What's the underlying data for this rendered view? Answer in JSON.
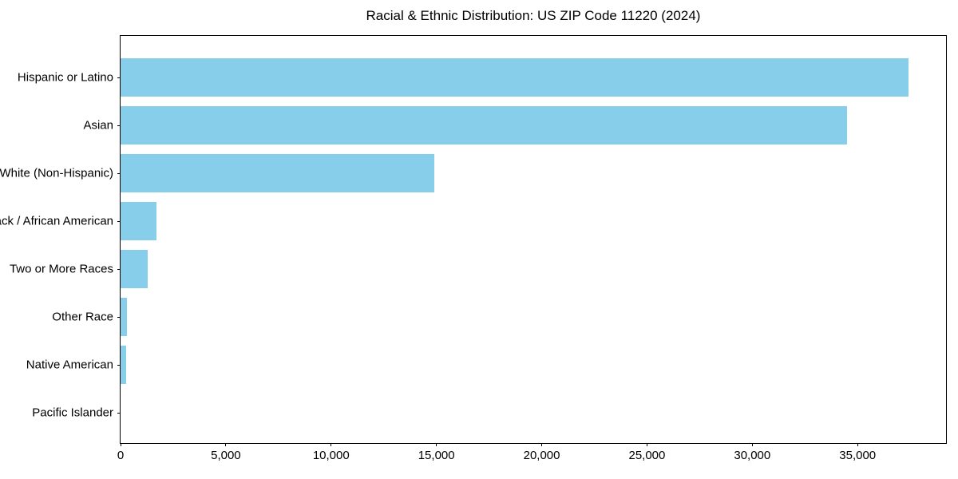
{
  "figure": {
    "background_color": "#ffffff",
    "text_color": "#000000"
  },
  "chart_data": {
    "type": "bar",
    "orientation": "horizontal",
    "title": "Racial & Ethnic Distribution: US ZIP Code 11220 (2024)",
    "xlabel": "",
    "ylabel": "",
    "grid": false,
    "legend": null,
    "bar_color": "#87CEEB",
    "categories": [
      "Hispanic or Latino",
      "Asian",
      "White (Non-Hispanic)",
      "Black / African American",
      "Two or More Races",
      "Other Race",
      "Native American",
      "Pacific Islander"
    ],
    "values": [
      37400,
      34500,
      14900,
      1700,
      1300,
      300,
      270,
      0
    ],
    "xlim": [
      0,
      39200
    ],
    "x_ticks": [
      0,
      5000,
      10000,
      15000,
      20000,
      25000,
      30000,
      35000
    ],
    "x_tick_labels": [
      "0",
      "5,000",
      "10,000",
      "15,000",
      "20,000",
      "25,000",
      "30,000",
      "35,000"
    ]
  }
}
